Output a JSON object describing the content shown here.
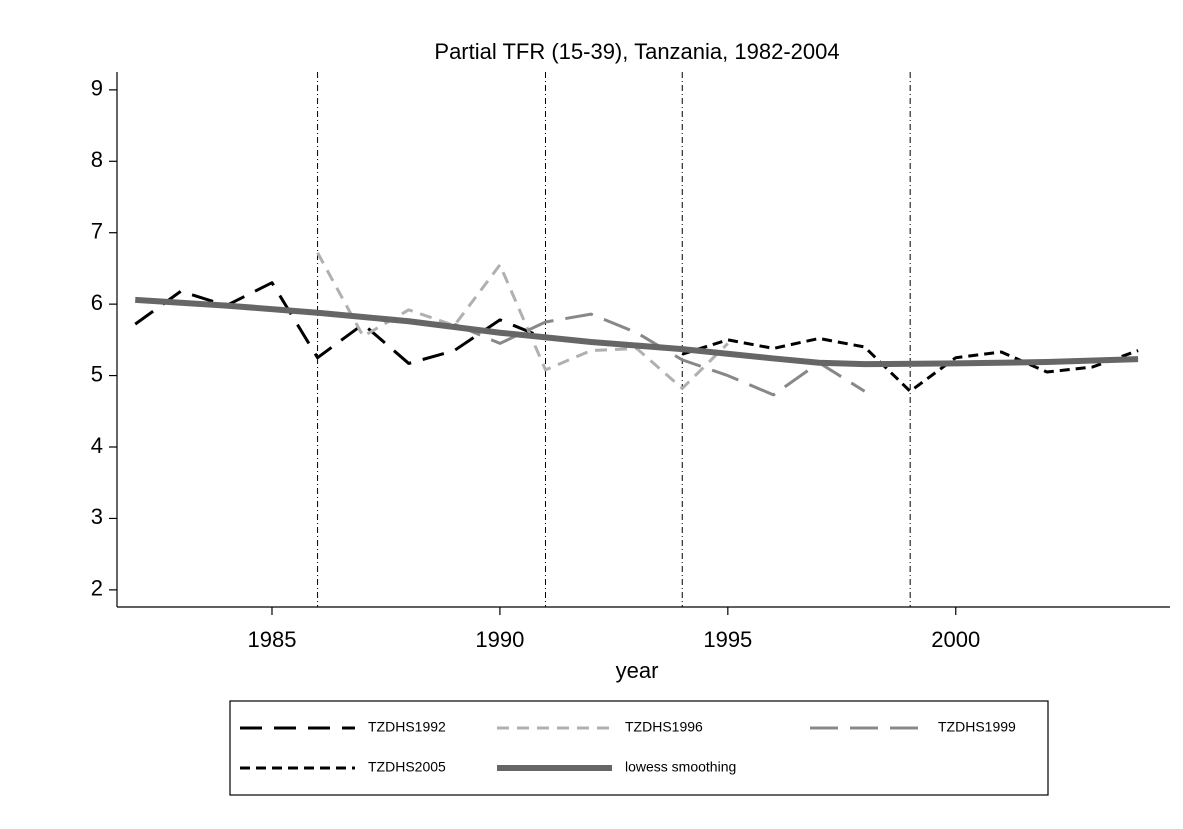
{
  "chart_data": {
    "type": "line",
    "title": "Partial TFR (15-39), Tanzania, 1982-2004",
    "x_label": "year",
    "xlim": [
      1981.6,
      2004.7
    ],
    "xticks": [
      1985,
      1990,
      1995,
      2000
    ],
    "ylim": [
      1.76,
      9.25
    ],
    "yticks": [
      2,
      3,
      4,
      5,
      6,
      7,
      8,
      9
    ],
    "vlines": [
      1986,
      1991,
      1994,
      1999
    ],
    "series": [
      {
        "name": "TZDHS1992",
        "color": "#000000",
        "dash": "22,12",
        "width": 3,
        "x": [
          1982,
          1983,
          1984,
          1985,
          1986,
          1987,
          1988,
          1989,
          1990,
          1991
        ],
        "values": [
          5.72,
          6.18,
          5.98,
          6.3,
          5.25,
          5.72,
          5.17,
          5.35,
          5.78,
          5.52
        ]
      },
      {
        "name": "TZDHS1996",
        "color": "#b0b0b0",
        "dash": "12,8",
        "width": 3,
        "x": [
          1986,
          1987,
          1988,
          1989,
          1990,
          1991,
          1992,
          1993,
          1994,
          1995
        ],
        "values": [
          6.72,
          5.55,
          5.92,
          5.7,
          6.55,
          5.08,
          5.35,
          5.38,
          4.82,
          5.45
        ]
      },
      {
        "name": "TZDHS1999",
        "color": "#888888",
        "dash": "28,12",
        "width": 3,
        "x": [
          1989,
          1990,
          1991,
          1992,
          1993,
          1994,
          1995,
          1996,
          1997,
          1998
        ],
        "values": [
          5.72,
          5.45,
          5.75,
          5.86,
          5.6,
          5.22,
          5.0,
          4.73,
          5.18,
          4.78
        ]
      },
      {
        "name": "TZDHS2005",
        "color": "#000000",
        "dash": "10,6",
        "width": 3,
        "x": [
          1994,
          1995,
          1996,
          1997,
          1998,
          1999,
          2000,
          2001,
          2002,
          2003,
          2004
        ],
        "values": [
          5.3,
          5.5,
          5.38,
          5.52,
          5.4,
          4.78,
          5.25,
          5.33,
          5.05,
          5.12,
          5.35
        ]
      },
      {
        "name": "lowess smoothing",
        "color": "#666666",
        "dash": "none",
        "width": 6,
        "x": [
          1982,
          1984,
          1986,
          1988,
          1990,
          1992,
          1994,
          1996,
          1997,
          1998,
          2000,
          2002,
          2004
        ],
        "values": [
          6.06,
          5.98,
          5.88,
          5.76,
          5.6,
          5.47,
          5.37,
          5.24,
          5.18,
          5.16,
          5.17,
          5.19,
          5.23
        ]
      }
    ]
  }
}
